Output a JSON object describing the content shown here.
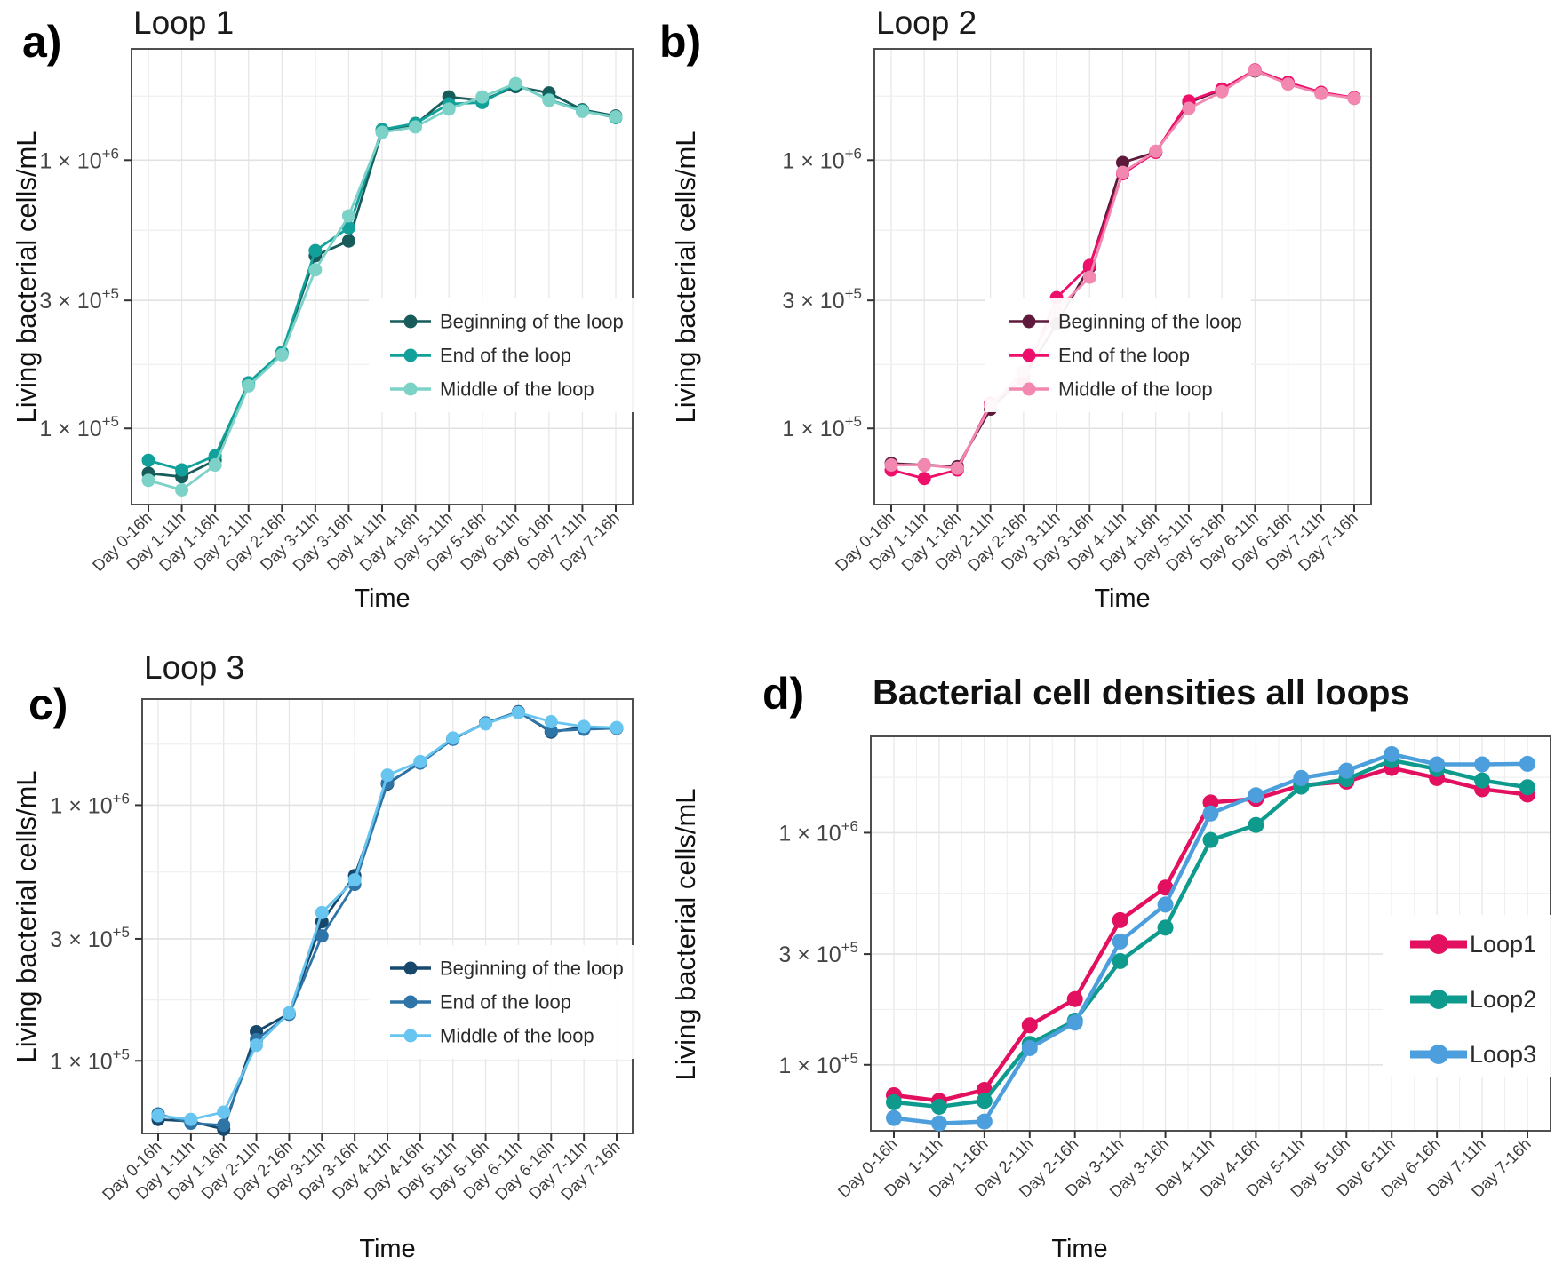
{
  "axes": {
    "y_label": "Living bacterial cells/mL",
    "x_label": "Time"
  },
  "y_ticks": [
    {
      "coef": "1",
      "exp": "+6",
      "value": 1000000
    },
    {
      "coef": "3",
      "exp": "+5",
      "value": 300000
    },
    {
      "coef": "1",
      "exp": "+5",
      "value": 100000
    }
  ],
  "categories": [
    "Day 0-16h",
    "Day 1-11h",
    "Day 1-16h",
    "Day 2-11h",
    "Day 2-16h",
    "Day 3-11h",
    "Day 3-16h",
    "Day 4-11h",
    "Day 4-16h",
    "Day 5-11h",
    "Day 5-16h",
    "Day 6-11h",
    "Day 6-16h",
    "Day 7-11h",
    "Day 7-16h"
  ],
  "colors": {
    "grid_major": "#e2e2e2",
    "grid_minor": "#efefef",
    "panel_border": "#4f4f4f",
    "tick_mark": "#333333",
    "tick_text": "#454545",
    "legend_text": "#2b2b2b"
  },
  "chart_data": [
    {
      "panel_letter": "a)",
      "title": "Loop 1",
      "type": "line",
      "yscale": "log",
      "ylim": [
        52000,
        2600000
      ],
      "xlabel": "Time",
      "ylabel": "Living bacterial cells/mL",
      "legend_position": "inside-bottom-right",
      "categories": [
        "Day 0-16h",
        "Day 1-11h",
        "Day 1-16h",
        "Day 2-11h",
        "Day 2-16h",
        "Day 3-11h",
        "Day 3-16h",
        "Day 4-11h",
        "Day 4-16h",
        "Day 5-11h",
        "Day 5-16h",
        "Day 6-11h",
        "Day 6-16h",
        "Day 7-11h",
        "Day 7-16h"
      ],
      "series": [
        {
          "name": "Beginning of the loop",
          "color": "#175b5b",
          "values": [
            68000,
            66000,
            76000,
            145000,
            190000,
            440000,
            500000,
            1280000,
            1360000,
            1720000,
            1670000,
            1880000,
            1780000,
            1540000,
            1460000
          ]
        },
        {
          "name": "End of the loop",
          "color": "#12a19a",
          "values": [
            76000,
            70000,
            79000,
            148000,
            192000,
            460000,
            560000,
            1300000,
            1370000,
            1620000,
            1640000,
            1920000,
            1680000,
            1530000,
            1440000
          ]
        },
        {
          "name": "Middle of the loop",
          "color": "#7dd2c8",
          "values": [
            64000,
            59000,
            73000,
            144000,
            188000,
            390000,
            620000,
            1270000,
            1330000,
            1550000,
            1720000,
            1930000,
            1670000,
            1520000,
            1450000
          ]
        }
      ]
    },
    {
      "panel_letter": "b)",
      "title": "Loop 2",
      "type": "line",
      "yscale": "log",
      "ylim": [
        52000,
        2600000
      ],
      "xlabel": "Time",
      "ylabel": "Living bacterial cells/mL",
      "legend_position": "inside-bottom-right",
      "categories": [
        "Day 0-16h",
        "Day 1-11h",
        "Day 1-16h",
        "Day 2-11h",
        "Day 2-16h",
        "Day 3-11h",
        "Day 3-16h",
        "Day 4-11h",
        "Day 4-16h",
        "Day 5-11h",
        "Day 5-16h",
        "Day 6-11h",
        "Day 6-16h",
        "Day 7-11h",
        "Day 7-16h"
      ],
      "series": [
        {
          "name": "Beginning of the loop",
          "color": "#5e1a3b",
          "values": [
            74000,
            73000,
            72000,
            118000,
            155000,
            246000,
            400000,
            980000,
            1070000,
            1640000,
            1830000,
            2150000,
            1940000,
            1780000,
            1700000
          ]
        },
        {
          "name": "End of the loop",
          "color": "#ee0f6b",
          "values": [
            70000,
            65000,
            70000,
            124000,
            152000,
            307000,
            405000,
            890000,
            1070000,
            1660000,
            1840000,
            2170000,
            1950000,
            1790000,
            1710000
          ]
        },
        {
          "name": "Middle of the loop",
          "color": "#f287b0",
          "values": [
            73000,
            73000,
            71000,
            122000,
            163000,
            276000,
            366000,
            900000,
            1080000,
            1560000,
            1800000,
            2160000,
            1920000,
            1770000,
            1700000
          ]
        }
      ]
    },
    {
      "panel_letter": "c)",
      "title": "Loop 3",
      "type": "line",
      "yscale": "log",
      "ylim": [
        52000,
        2600000
      ],
      "xlabel": "Time",
      "ylabel": "Living bacterial cells/mL",
      "legend_position": "inside-bottom-right",
      "categories": [
        "Day 0-16h",
        "Day 1-11h",
        "Day 1-16h",
        "Day 2-11h",
        "Day 2-16h",
        "Day 3-11h",
        "Day 3-16h",
        "Day 4-11h",
        "Day 4-16h",
        "Day 5-11h",
        "Day 5-16h",
        "Day 6-11h",
        "Day 6-16h",
        "Day 7-11h",
        "Day 7-16h"
      ],
      "series": [
        {
          "name": "Beginning of the loop",
          "color": "#17486b",
          "values": [
            59000,
            58000,
            54000,
            130000,
            153000,
            350000,
            530000,
            1210000,
            1470000,
            1820000,
            2090000,
            2320000,
            1930000,
            2020000,
            2000000
          ]
        },
        {
          "name": "End of the loop",
          "color": "#2e74a6",
          "values": [
            62000,
            57000,
            56000,
            121000,
            152000,
            308000,
            490000,
            1220000,
            1460000,
            1810000,
            2100000,
            2310000,
            1950000,
            1980000,
            2000000
          ]
        },
        {
          "name": "Middle of the loop",
          "color": "#67c5f0",
          "values": [
            61000,
            59000,
            63000,
            115000,
            154000,
            380000,
            510000,
            1310000,
            1480000,
            1830000,
            2080000,
            2300000,
            2120000,
            2030000,
            2010000
          ]
        }
      ]
    },
    {
      "panel_letter": "d)",
      "title": "Bacterial cell densities all loops",
      "type": "line",
      "yscale": "log",
      "ylim": [
        52000,
        2600000
      ],
      "xlabel": "Time",
      "ylabel": "Living bacterial cells/mL",
      "legend_position": "inside-bottom-right",
      "categories": [
        "Day 0-16h",
        "Day 1-11h",
        "Day 1-16h",
        "Day 2-11h",
        "Day 2-16h",
        "Day 3-11h",
        "Day 3-16h",
        "Day 4-11h",
        "Day 4-16h",
        "Day 5-11h",
        "Day 5-16h",
        "Day 6-11h",
        "Day 6-16h",
        "Day 7-11h",
        "Day 7-16h"
      ],
      "series": [
        {
          "name": "Loop1",
          "color": "#e3105f",
          "values": [
            74000,
            70000,
            78000,
            148000,
            192000,
            420000,
            580000,
            1350000,
            1400000,
            1600000,
            1660000,
            1900000,
            1720000,
            1540000,
            1460000
          ]
        },
        {
          "name": "Loop2",
          "color": "#0e9b8d",
          "values": [
            69000,
            66000,
            70000,
            123000,
            155000,
            280000,
            390000,
            930000,
            1080000,
            1580000,
            1700000,
            2050000,
            1880000,
            1680000,
            1570000
          ]
        },
        {
          "name": "Loop3",
          "color": "#4c9fdc",
          "values": [
            59000,
            56000,
            57000,
            118000,
            152000,
            340000,
            490000,
            1210000,
            1450000,
            1720000,
            1850000,
            2180000,
            1970000,
            1970000,
            1980000
          ]
        }
      ]
    }
  ]
}
